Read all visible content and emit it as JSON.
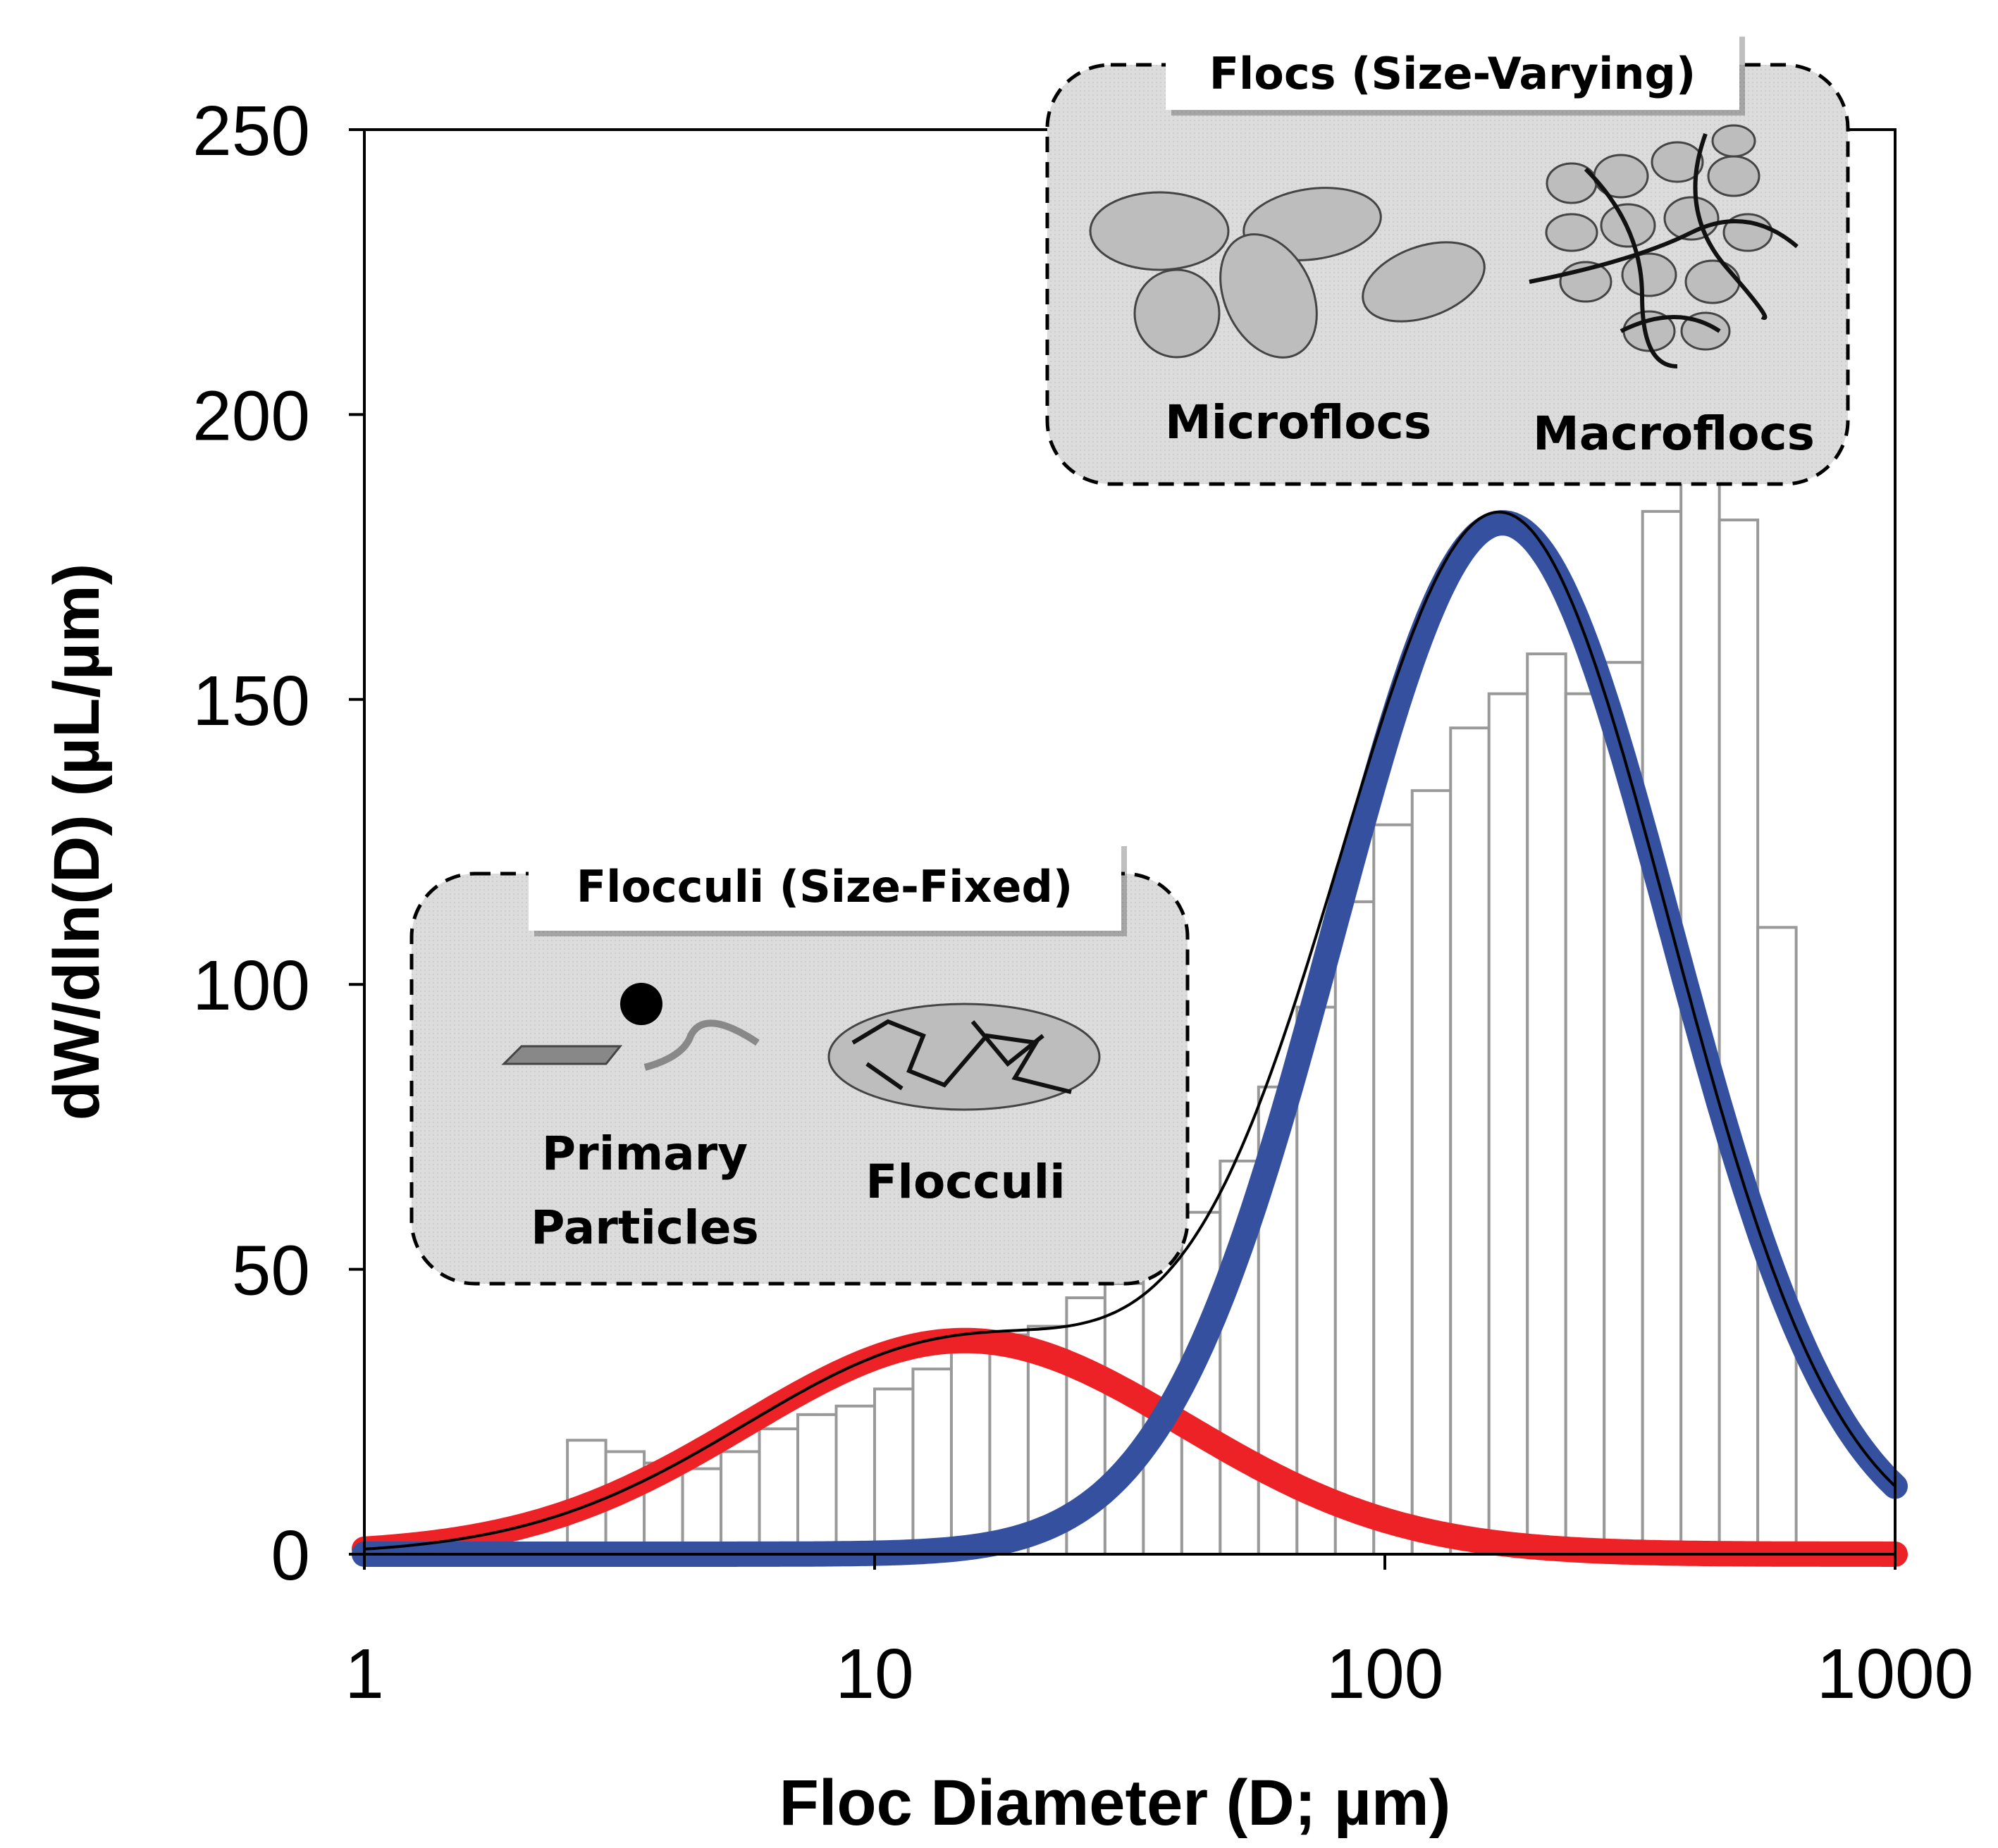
{
  "chart_data": {
    "type": "bar+line",
    "xlabel": "Floc Diameter (D; µm)",
    "ylabel": "dW/dln(D) (µL/µm)",
    "xscale": "log",
    "xlim": [
      1,
      1000
    ],
    "ylim": [
      0,
      250
    ],
    "xticks": [
      "1",
      "10",
      "100",
      "1000"
    ],
    "yticks": [
      "0",
      "50",
      "100",
      "150",
      "200",
      "250"
    ],
    "grid": false,
    "histogram": {
      "bin_start": 2.5,
      "bin_ratio": 1.1892,
      "values": [
        20,
        18,
        16,
        15,
        18,
        22,
        24.5,
        26,
        29,
        32.5,
        35.5,
        38.5,
        40,
        45,
        47.5,
        53.5,
        60,
        69,
        82,
        96,
        114.5,
        128,
        134,
        145,
        151,
        158,
        151,
        156.5,
        183,
        193,
        181.5,
        110
      ]
    },
    "series": [
      {
        "name": "flocculi-fit",
        "color": "#ec2227",
        "peak": 37.5,
        "mode_um": 15,
        "sigma_log10": 0.43
      },
      {
        "name": "flocs-fit",
        "color": "#34509f",
        "peak": 181,
        "mode_um": 170,
        "sigma_log10": 0.33
      },
      {
        "name": "total-fit",
        "color": "#000000",
        "sum_of": [
          "flocculi-fit",
          "flocs-fit"
        ]
      }
    ]
  },
  "insets": {
    "flocs": {
      "title": "Flocs (Size-Varying)",
      "micro": "Microflocs",
      "macro": "Macroflocs"
    },
    "flocculi": {
      "title": "Flocculi (Size-Fixed)",
      "primary_1": "Primary",
      "primary_2": "Particles",
      "flocculi": "Flocculi"
    }
  }
}
